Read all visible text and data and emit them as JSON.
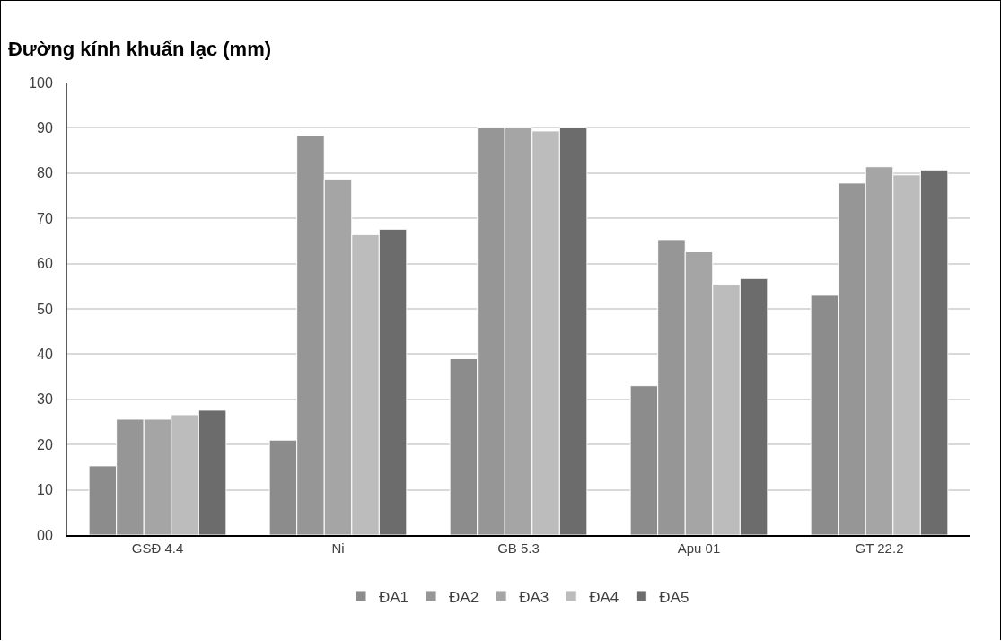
{
  "chart_data": {
    "type": "bar",
    "title": "Đường kính khuẩn lạc (mm)",
    "categories": [
      "GSĐ 4.4",
      "Ni",
      "GB 5.3",
      "Apu 01",
      "GT 22.2"
    ],
    "series": [
      {
        "name": "ĐA1",
        "color": "#8c8c8c",
        "values": [
          15.3,
          21,
          39,
          33,
          53
        ]
      },
      {
        "name": "ĐA2",
        "color": "#969696",
        "values": [
          25.6,
          88.3,
          90,
          65.3,
          77.8
        ]
      },
      {
        "name": "ĐA3",
        "color": "#a5a5a5",
        "values": [
          25.6,
          78.7,
          90,
          62.6,
          81.4
        ]
      },
      {
        "name": "ĐA4",
        "color": "#bcbcbc",
        "values": [
          26.6,
          66.4,
          89.3,
          55.4,
          79.6
        ]
      },
      {
        "name": "ĐA5",
        "color": "#6c6c6c",
        "values": [
          27.6,
          67.6,
          90,
          56.7,
          80.7
        ]
      }
    ],
    "ylim": [
      0,
      100
    ],
    "yticks": [
      {
        "value": 0,
        "label": "00"
      },
      10,
      20,
      30,
      40,
      50,
      60,
      70,
      80,
      90,
      100
    ],
    "grid": "y",
    "legend": "bottom"
  }
}
